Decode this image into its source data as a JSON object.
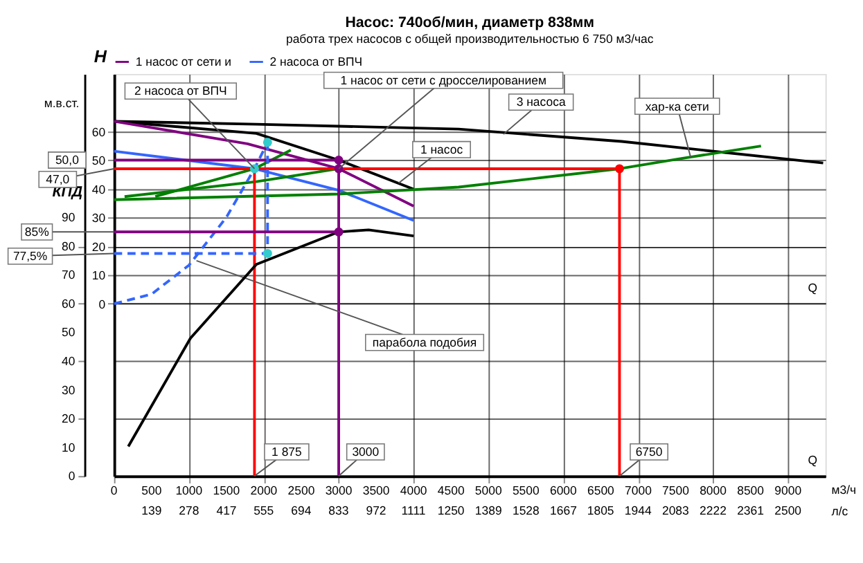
{
  "chart_data": {
    "type": "line",
    "title": "Насос: 740об/мин, диаметр 838мм",
    "subtitle": "работа трех насосов с общей производительностью 6 750 м3/час",
    "xlabel": "м3/ч",
    "x2label": "л/с",
    "ylabel": "H",
    "y2label": "КПД",
    "xlim": [
      0,
      9500
    ],
    "xticks": [
      0,
      500,
      1000,
      1500,
      2000,
      2500,
      3000,
      3500,
      4000,
      4500,
      5000,
      5500,
      6000,
      6500,
      7000,
      7500,
      8000,
      8500,
      9000
    ],
    "x2lim": [
      0,
      2639
    ],
    "x2ticks": [
      139,
      278,
      417,
      555,
      694,
      833,
      972,
      1111,
      1250,
      1389,
      1528,
      1667,
      1805,
      1944,
      2083,
      2222,
      2361,
      2500
    ],
    "ylim": [
      -60,
      80
    ],
    "yticks": [
      0,
      10,
      20,
      30,
      40,
      50,
      60
    ],
    "y2lim": [
      0,
      140
    ],
    "y2ticks": [
      0,
      10,
      20,
      30,
      40,
      50,
      60,
      70,
      80,
      90
    ],
    "grid": true,
    "legend": "top",
    "line_style": "solid",
    "series": [
      {
        "x": [
          0,
          1900,
          4600,
          6780,
          9470
        ],
        "values": [
          63.5,
          62.5,
          60.8,
          56.5,
          49
        ],
        "color": "#000000"
      },
      {
        "x": [
          0,
          1900,
          3000,
          4000
        ],
        "values": [
          63.5,
          59.3,
          50,
          39.9
        ],
        "color": "#000000"
      },
      {
        "name": "1 насос от сети и",
        "x": [
          0,
          1780,
          3000,
          4000
        ],
        "values": [
          63.5,
          55.7,
          47,
          34
        ],
        "color": "#800080"
      },
      {
        "name": "2 насоса от ВПЧ",
        "x": [
          0,
          1875,
          3000,
          4000
        ],
        "values": [
          53.1,
          47,
          39.5,
          29
        ],
        "color": "#3366ff"
      },
      {
        "x": [
          0,
          3000,
          4600,
          6750,
          7535,
          8640
        ],
        "values": [
          36.2,
          38.2,
          40.6,
          47,
          50.4,
          54.9
        ],
        "color": "#008000"
      },
      {
        "x": [
          140,
          1900,
          3000
        ],
        "values": [
          37.3,
          42.5,
          47
        ],
        "color": "#008000"
      },
      {
        "x": [
          550,
          1875,
          2360
        ],
        "values": [
          37.3,
          47,
          53.5
        ],
        "color": "#008000"
      },
      {
        "x": [
          0,
          500,
          1000,
          1500,
          1875,
          2050
        ],
        "values": [
          0,
          3.3,
          13.4,
          30.1,
          47,
          56.2
        ],
        "color": "#3366ff",
        "line_style": "dashed"
      },
      {
        "axis": "y2",
        "x": [
          190,
          1020,
          1900,
          3000,
          3400,
          4000
        ],
        "values": [
          10.3,
          48,
          73.7,
          85,
          85.7,
          83.6
        ],
        "color": "#000000"
      },
      {
        "x": [
          0,
          6750
        ],
        "values": [
          47,
          47
        ],
        "color": "#ff0000",
        "value_labels": [
          "47,0",
          null
        ]
      },
      {
        "x": [
          1875,
          1875
        ],
        "values": [
          -60,
          47
        ],
        "color": "#ff0000"
      },
      {
        "x": [
          6750,
          6750
        ],
        "values": [
          -60,
          47
        ],
        "color": "#ff0000"
      },
      {
        "x": [
          0,
          3000
        ],
        "values": [
          50,
          50
        ],
        "color": "#800080",
        "value_labels": [
          "50,0",
          null
        ]
      },
      {
        "x": [
          3000,
          3000
        ],
        "values": [
          -60,
          50
        ],
        "color": "#800080"
      },
      {
        "axis": "y2",
        "x": [
          0,
          3000
        ],
        "values": [
          85,
          85
        ],
        "color": "#800080",
        "value_labels": [
          "85%",
          null
        ]
      },
      {
        "axis": "y2",
        "x": [
          0,
          2050
        ],
        "values": [
          77.5,
          77.5
        ],
        "color": "#3366ff",
        "line_style": "dashed",
        "value_labels": [
          "77,5%",
          null
        ]
      },
      {
        "x": [
          2050,
          2050
        ],
        "values": [
          56.2,
          17.5
        ],
        "color": "#3366ff",
        "line_style": "dashed"
      },
      {
        "type": "scatter",
        "marker": "circle",
        "x": [
          3000,
          3000,
          1875,
          2050,
          6750
        ],
        "values": [
          50,
          47,
          47,
          56.2,
          47
        ],
        "colors": [
          "#800080",
          "#800080",
          "#33cccc",
          "#33cccc",
          "#ff0000"
        ]
      },
      {
        "type": "scatter",
        "axis": "y2",
        "marker": "circle",
        "x": [
          3000,
          2050
        ],
        "values": [
          85,
          77.5
        ],
        "colors": [
          "#800080",
          "#33cccc"
        ]
      }
    ],
    "annotations": [
      {
        "text": "2 насоса от ВПЧ",
        "x": 1875,
        "y": 47
      },
      {
        "text": "1 насос от сети с дросселированием",
        "x": 3000,
        "y": 47
      },
      {
        "text": "1 насос",
        "x": 3800,
        "y": 42
      },
      {
        "text": "3 насоса",
        "x": 5200,
        "y": 59
      },
      {
        "text": "хар-ка сети",
        "x": 7700,
        "y": 51
      },
      {
        "text": "парабола подобия",
        "x": 1100,
        "y": 15
      },
      {
        "text": "1 875",
        "x": 1875,
        "y": -60
      },
      {
        "text": "3000",
        "x": 3000,
        "y": -60
      },
      {
        "text": "6750",
        "x": 6750,
        "y": -60
      },
      "м.в.ст.",
      "Q",
      "Q"
    ]
  }
}
